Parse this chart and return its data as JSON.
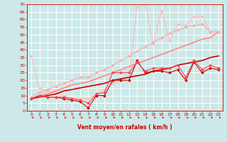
{
  "bg_color": "#cce8e8",
  "grid_color": "#ffffff",
  "xlabel": "Vent moyen/en rafales ( km/h )",
  "xlabel_color": "#cc0000",
  "tick_color": "#cc0000",
  "arrow_color": "#cc0000",
  "xlim": [
    -0.5,
    23.5
  ],
  "ylim": [
    0,
    70
  ],
  "yticks": [
    0,
    5,
    10,
    15,
    20,
    25,
    30,
    35,
    40,
    45,
    50,
    55,
    60,
    65,
    70
  ],
  "xticks": [
    0,
    1,
    2,
    3,
    4,
    5,
    6,
    7,
    8,
    9,
    10,
    11,
    12,
    13,
    14,
    15,
    16,
    17,
    18,
    19,
    20,
    21,
    22,
    23
  ],
  "series": [
    {
      "x": [
        0,
        1,
        2,
        3,
        4,
        5,
        6,
        7,
        8,
        9,
        10,
        11,
        12,
        13,
        14,
        15,
        16,
        17,
        18,
        19,
        20,
        21,
        22,
        23
      ],
      "y": [
        8,
        10,
        9,
        9,
        8,
        7,
        6,
        2,
        10,
        10,
        20,
        20,
        20,
        33,
        25,
        26,
        26,
        25,
        27,
        20,
        32,
        25,
        28,
        27
      ],
      "color": "#cc0000",
      "lw": 0.8,
      "marker": "D",
      "ms": 2.0,
      "zorder": 4
    },
    {
      "x": [
        0,
        1,
        2,
        3,
        4,
        5,
        6,
        7,
        8,
        9,
        10,
        11,
        12,
        13,
        14,
        15,
        16,
        17,
        18,
        19,
        20,
        21,
        22,
        23
      ],
      "y": [
        8,
        10,
        9,
        9,
        9,
        8,
        7,
        5,
        11,
        12,
        25,
        25,
        25,
        32,
        26,
        28,
        28,
        28,
        30,
        22,
        33,
        27,
        30,
        28
      ],
      "color": "#ff4444",
      "lw": 0.8,
      "marker": "D",
      "ms": 2.0,
      "zorder": 4
    },
    {
      "x": [
        0,
        1,
        2,
        3,
        4,
        5,
        6,
        7,
        8,
        9,
        10,
        11,
        12,
        13,
        14,
        15,
        16,
        17,
        18,
        19,
        20,
        21,
        22,
        23
      ],
      "y": [
        9,
        12,
        14,
        16,
        18,
        20,
        22,
        22,
        25,
        27,
        30,
        33,
        36,
        39,
        42,
        45,
        48,
        51,
        53,
        55,
        56,
        57,
        52,
        52
      ],
      "color": "#ffaaaa",
      "lw": 0.9,
      "marker": "D",
      "ms": 1.8,
      "zorder": 3
    },
    {
      "x": [
        0,
        1,
        2,
        3,
        4,
        5,
        6,
        7,
        8,
        9,
        10,
        11,
        12,
        13,
        14,
        15,
        16,
        17,
        18,
        19,
        20,
        21,
        22,
        23
      ],
      "y": [
        36,
        15,
        13,
        12,
        10,
        8,
        8,
        8,
        11,
        14,
        18,
        20,
        22,
        68,
        70,
        44,
        66,
        46,
        57,
        56,
        62,
        62,
        52,
        52
      ],
      "color": "#ffbbbb",
      "lw": 0.8,
      "marker": "D",
      "ms": 1.8,
      "zorder": 2
    },
    {
      "x": [
        0,
        1,
        2,
        3,
        4,
        5,
        6,
        7,
        8,
        9,
        10,
        11,
        12,
        13,
        14,
        15,
        16,
        17,
        18,
        19,
        20,
        21,
        22,
        23
      ],
      "y": [
        8,
        10,
        11,
        13,
        15,
        17,
        18,
        19,
        21,
        23,
        25,
        27,
        29,
        31,
        33,
        35,
        37,
        39,
        41,
        43,
        45,
        47,
        48,
        52
      ],
      "color": "#ff8888",
      "lw": 1.2,
      "marker": null,
      "ms": 0,
      "zorder": 2
    },
    {
      "x": [
        0,
        1,
        2,
        3,
        4,
        5,
        6,
        7,
        8,
        9,
        10,
        11,
        12,
        13,
        14,
        15,
        16,
        17,
        18,
        19,
        20,
        21,
        22,
        23
      ],
      "y": [
        8,
        9,
        10,
        11,
        13,
        14,
        15,
        16,
        17,
        18,
        20,
        21,
        22,
        23,
        24,
        26,
        27,
        28,
        30,
        31,
        32,
        33,
        35,
        36
      ],
      "color": "#cc0000",
      "lw": 1.2,
      "marker": null,
      "ms": 0,
      "zorder": 2
    }
  ]
}
